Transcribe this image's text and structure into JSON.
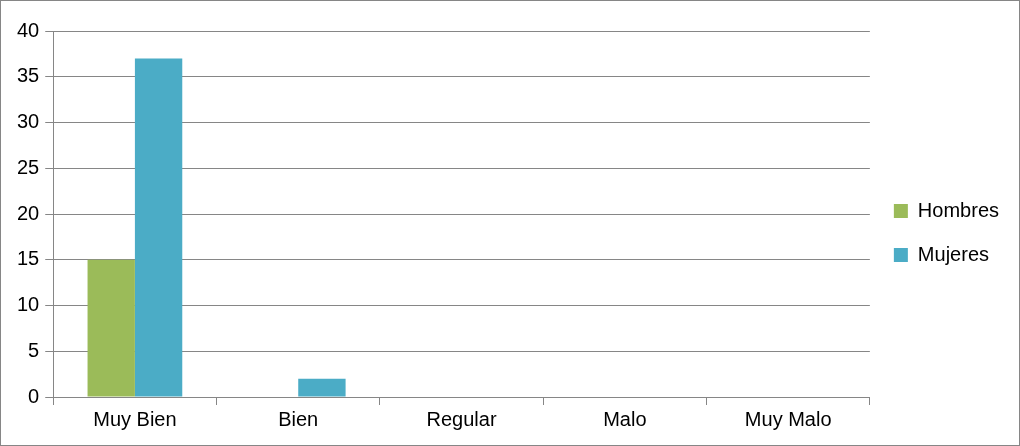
{
  "chart_data": {
    "type": "bar",
    "categories": [
      "Muy Bien",
      "Bien",
      "Regular",
      "Malo",
      "Muy Malo"
    ],
    "series": [
      {
        "name": "Hombres",
        "color": "#9bbb59",
        "values": [
          15,
          0,
          0,
          0,
          0
        ]
      },
      {
        "name": "Mujeres",
        "color": "#4bacc6",
        "values": [
          37,
          2,
          0,
          0,
          0
        ]
      }
    ],
    "ylim": [
      0,
      40
    ],
    "yticks": [
      0,
      5,
      10,
      15,
      20,
      25,
      30,
      35,
      40
    ],
    "grid": "y",
    "legend": "right"
  }
}
